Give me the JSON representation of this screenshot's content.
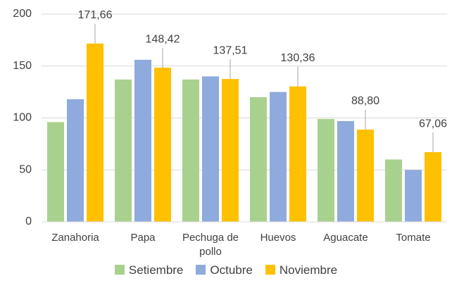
{
  "chart_data": {
    "type": "bar",
    "categories": [
      "Zanahoria",
      "Papa",
      "Pechuga de pollo",
      "Huevos",
      "Aguacate",
      "Tomate"
    ],
    "series": [
      {
        "name": "Setiembre",
        "color": "#a9d18e",
        "values": [
          96,
          137,
          137,
          120,
          99,
          60
        ]
      },
      {
        "name": "Octubre",
        "color": "#8faadc",
        "values": [
          118,
          156,
          140,
          125,
          97,
          50
        ]
      },
      {
        "name": "Noviembre",
        "color": "#ffc000",
        "values": [
          171.66,
          148.42,
          137.51,
          130.36,
          88.8,
          67.06
        ],
        "value_labels": [
          "171,66",
          "148,42",
          "137,51",
          "130,36",
          "88,80",
          "67,06"
        ]
      }
    ],
    "ylim": [
      0,
      200
    ],
    "yticks": [
      0,
      50,
      100,
      150,
      200
    ],
    "grid": true,
    "legend": "bottom"
  }
}
